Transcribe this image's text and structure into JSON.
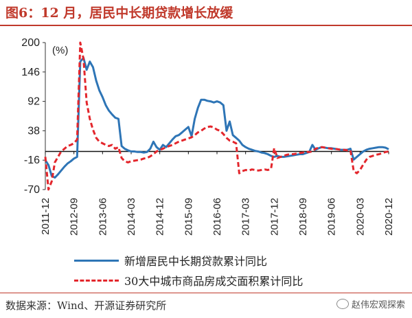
{
  "figure_title": "图6：12 月，居民中长期贷款增长放缓",
  "source_note": "数据来源：Wind、开源证券研究所",
  "watermark_text": "赵伟宏观探索",
  "watermark_icon": "wechat-icon",
  "chart_data": {
    "type": "line",
    "unit_label": "(%)",
    "y_ticks": [
      200,
      146,
      92,
      38,
      -16,
      -70
    ],
    "ylim": [
      -70,
      200
    ],
    "xlim": [
      "2011-12",
      "2020-12"
    ],
    "x_tick_labels": [
      "2011-12",
      "2012-09",
      "2013-06",
      "2014-03",
      "2014-12",
      "2015-09",
      "2016-06",
      "2017-03",
      "2017-12",
      "2018-09",
      "2019-06",
      "2020-03",
      "2020-12"
    ],
    "grid": false,
    "legend_position": "bottom",
    "series": [
      {
        "name": "新增居民中长期贷款累计同比",
        "color": "#2e75b6",
        "style": "solid",
        "points": [
          [
            "2011-12",
            -16
          ],
          [
            "2012-01",
            -25
          ],
          [
            "2012-02",
            -45
          ],
          [
            "2012-03",
            -48
          ],
          [
            "2012-04",
            -42
          ],
          [
            "2012-05",
            -35
          ],
          [
            "2012-06",
            -28
          ],
          [
            "2012-07",
            -22
          ],
          [
            "2012-08",
            -18
          ],
          [
            "2012-09",
            -13
          ],
          [
            "2012-10",
            -10
          ],
          [
            "2012-11",
            165
          ],
          [
            "2012-12",
            172
          ],
          [
            "2013-01",
            150
          ],
          [
            "2013-02",
            165
          ],
          [
            "2013-03",
            155
          ],
          [
            "2013-04",
            130
          ],
          [
            "2013-05",
            112
          ],
          [
            "2013-06",
            100
          ],
          [
            "2013-07",
            85
          ],
          [
            "2013-08",
            75
          ],
          [
            "2013-09",
            68
          ],
          [
            "2013-10",
            62
          ],
          [
            "2013-11",
            60
          ],
          [
            "2013-12",
            10
          ],
          [
            "2014-01",
            5
          ],
          [
            "2014-02",
            2
          ],
          [
            "2014-03",
            0
          ],
          [
            "2014-04",
            0
          ],
          [
            "2014-05",
            -1
          ],
          [
            "2014-06",
            -1
          ],
          [
            "2014-07",
            -2
          ],
          [
            "2014-08",
            -1
          ],
          [
            "2014-09",
            5
          ],
          [
            "2014-10",
            18
          ],
          [
            "2014-11",
            8
          ],
          [
            "2014-12",
            3
          ],
          [
            "2015-01",
            12
          ],
          [
            "2015-02",
            8
          ],
          [
            "2015-03",
            15
          ],
          [
            "2015-04",
            22
          ],
          [
            "2015-05",
            28
          ],
          [
            "2015-06",
            30
          ],
          [
            "2015-07",
            35
          ],
          [
            "2015-08",
            40
          ],
          [
            "2015-09",
            45
          ],
          [
            "2015-10",
            28
          ],
          [
            "2015-11",
            60
          ],
          [
            "2015-12",
            80
          ],
          [
            "2016-01",
            95
          ],
          [
            "2016-02",
            95
          ],
          [
            "2016-03",
            93
          ],
          [
            "2016-04",
            92
          ],
          [
            "2016-05",
            90
          ],
          [
            "2016-06",
            92
          ],
          [
            "2016-07",
            90
          ],
          [
            "2016-08",
            85
          ],
          [
            "2016-09",
            38
          ],
          [
            "2016-10",
            55
          ],
          [
            "2016-11",
            30
          ],
          [
            "2016-12",
            25
          ],
          [
            "2017-01",
            20
          ],
          [
            "2017-02",
            12
          ],
          [
            "2017-03",
            8
          ],
          [
            "2017-04",
            5
          ],
          [
            "2017-05",
            3
          ],
          [
            "2017-06",
            1
          ],
          [
            "2017-07",
            0
          ],
          [
            "2017-08",
            -2
          ],
          [
            "2017-09",
            -3
          ],
          [
            "2017-10",
            -5
          ],
          [
            "2017-11",
            -8
          ],
          [
            "2017-12",
            -10
          ],
          [
            "2018-01",
            -8
          ],
          [
            "2018-02",
            -10
          ],
          [
            "2018-03",
            -10
          ],
          [
            "2018-04",
            -9
          ],
          [
            "2018-05",
            -8
          ],
          [
            "2018-06",
            -7
          ],
          [
            "2018-07",
            -6
          ],
          [
            "2018-08",
            -5
          ],
          [
            "2018-09",
            -5
          ],
          [
            "2018-10",
            -3
          ],
          [
            "2018-11",
            -1
          ],
          [
            "2018-12",
            12
          ],
          [
            "2019-01",
            3
          ],
          [
            "2019-02",
            6
          ],
          [
            "2019-03",
            8
          ],
          [
            "2019-04",
            7
          ],
          [
            "2019-05",
            6
          ],
          [
            "2019-06",
            6
          ],
          [
            "2019-07",
            5
          ],
          [
            "2019-08",
            4
          ],
          [
            "2019-09",
            3
          ],
          [
            "2019-10",
            3
          ],
          [
            "2019-11",
            3
          ],
          [
            "2019-12",
            5
          ],
          [
            "2020-01",
            -15
          ],
          [
            "2020-02",
            -10
          ],
          [
            "2020-03",
            -5
          ],
          [
            "2020-04",
            0
          ],
          [
            "2020-05",
            3
          ],
          [
            "2020-06",
            5
          ],
          [
            "2020-07",
            6
          ],
          [
            "2020-08",
            7
          ],
          [
            "2020-09",
            8
          ],
          [
            "2020-10",
            8
          ],
          [
            "2020-11",
            7
          ],
          [
            "2020-12",
            4
          ]
        ]
      },
      {
        "name": "30大中城市商品房成交面积累计同比",
        "color": "#e3262c",
        "style": "dashed",
        "points": [
          [
            "2011-12",
            -10
          ],
          [
            "2012-01",
            -70
          ],
          [
            "2012-02",
            -55
          ],
          [
            "2012-03",
            -20
          ],
          [
            "2012-04",
            -10
          ],
          [
            "2012-05",
            0
          ],
          [
            "2012-06",
            5
          ],
          [
            "2012-07",
            10
          ],
          [
            "2012-08",
            12
          ],
          [
            "2012-09",
            15
          ],
          [
            "2012-10",
            22
          ],
          [
            "2012-11",
            200
          ],
          [
            "2012-12",
            170
          ],
          [
            "2013-01",
            90
          ],
          [
            "2013-02",
            60
          ],
          [
            "2013-03",
            40
          ],
          [
            "2013-04",
            25
          ],
          [
            "2013-05",
            18
          ],
          [
            "2013-06",
            15
          ],
          [
            "2013-07",
            12
          ],
          [
            "2013-08",
            10
          ],
          [
            "2013-09",
            12
          ],
          [
            "2013-10",
            5
          ],
          [
            "2013-11",
            8
          ],
          [
            "2013-12",
            -12
          ],
          [
            "2014-01",
            -18
          ],
          [
            "2014-02",
            -20
          ],
          [
            "2014-03",
            -18
          ],
          [
            "2014-04",
            -17
          ],
          [
            "2014-05",
            -16
          ],
          [
            "2014-06",
            -15
          ],
          [
            "2014-07",
            -13
          ],
          [
            "2014-08",
            -12
          ],
          [
            "2014-09",
            -9
          ],
          [
            "2014-10",
            -5
          ],
          [
            "2014-11",
            0
          ],
          [
            "2014-12",
            3
          ],
          [
            "2015-01",
            5
          ],
          [
            "2015-02",
            8
          ],
          [
            "2015-03",
            10
          ],
          [
            "2015-04",
            12
          ],
          [
            "2015-05",
            15
          ],
          [
            "2015-06",
            18
          ],
          [
            "2015-07",
            20
          ],
          [
            "2015-08",
            22
          ],
          [
            "2015-09",
            24
          ],
          [
            "2015-10",
            26
          ],
          [
            "2015-11",
            30
          ],
          [
            "2015-12",
            35
          ],
          [
            "2016-01",
            38
          ],
          [
            "2016-02",
            42
          ],
          [
            "2016-03",
            45
          ],
          [
            "2016-04",
            46
          ],
          [
            "2016-05",
            44
          ],
          [
            "2016-06",
            40
          ],
          [
            "2016-07",
            38
          ],
          [
            "2016-08",
            32
          ],
          [
            "2016-09",
            25
          ],
          [
            "2016-10",
            20
          ],
          [
            "2016-11",
            18
          ],
          [
            "2016-12",
            15
          ],
          [
            "2017-01",
            -40
          ],
          [
            "2017-02",
            -36
          ],
          [
            "2017-03",
            -34
          ],
          [
            "2017-04",
            -35
          ],
          [
            "2017-05",
            -33
          ],
          [
            "2017-06",
            -34
          ],
          [
            "2017-07",
            -35
          ],
          [
            "2017-08",
            -34
          ],
          [
            "2017-09",
            -33
          ],
          [
            "2017-10",
            -34
          ],
          [
            "2017-11",
            -32
          ],
          [
            "2017-12",
            6
          ],
          [
            "2018-01",
            -12
          ],
          [
            "2018-02",
            -10
          ],
          [
            "2018-03",
            -8
          ],
          [
            "2018-04",
            -6
          ],
          [
            "2018-05",
            -5
          ],
          [
            "2018-06",
            -5
          ],
          [
            "2018-07",
            -4
          ],
          [
            "2018-08",
            -3
          ],
          [
            "2018-09",
            -2
          ],
          [
            "2018-10",
            -1
          ],
          [
            "2018-11",
            -1
          ],
          [
            "2018-12",
            0
          ],
          [
            "2019-01",
            5
          ],
          [
            "2019-02",
            7
          ],
          [
            "2019-03",
            8
          ],
          [
            "2019-04",
            7
          ],
          [
            "2019-05",
            6
          ],
          [
            "2019-06",
            5
          ],
          [
            "2019-07",
            5
          ],
          [
            "2019-08",
            4
          ],
          [
            "2019-09",
            3
          ],
          [
            "2019-10",
            3
          ],
          [
            "2019-11",
            2
          ],
          [
            "2019-12",
            2
          ],
          [
            "2020-01",
            -36
          ],
          [
            "2020-02",
            -40
          ],
          [
            "2020-03",
            -34
          ],
          [
            "2020-04",
            -24
          ],
          [
            "2020-05",
            -15
          ],
          [
            "2020-06",
            -10
          ],
          [
            "2020-07",
            -8
          ],
          [
            "2020-08",
            -6
          ],
          [
            "2020-09",
            -5
          ],
          [
            "2020-10",
            -3
          ],
          [
            "2020-11",
            -1
          ],
          [
            "2020-12",
            0
          ]
        ]
      }
    ]
  }
}
